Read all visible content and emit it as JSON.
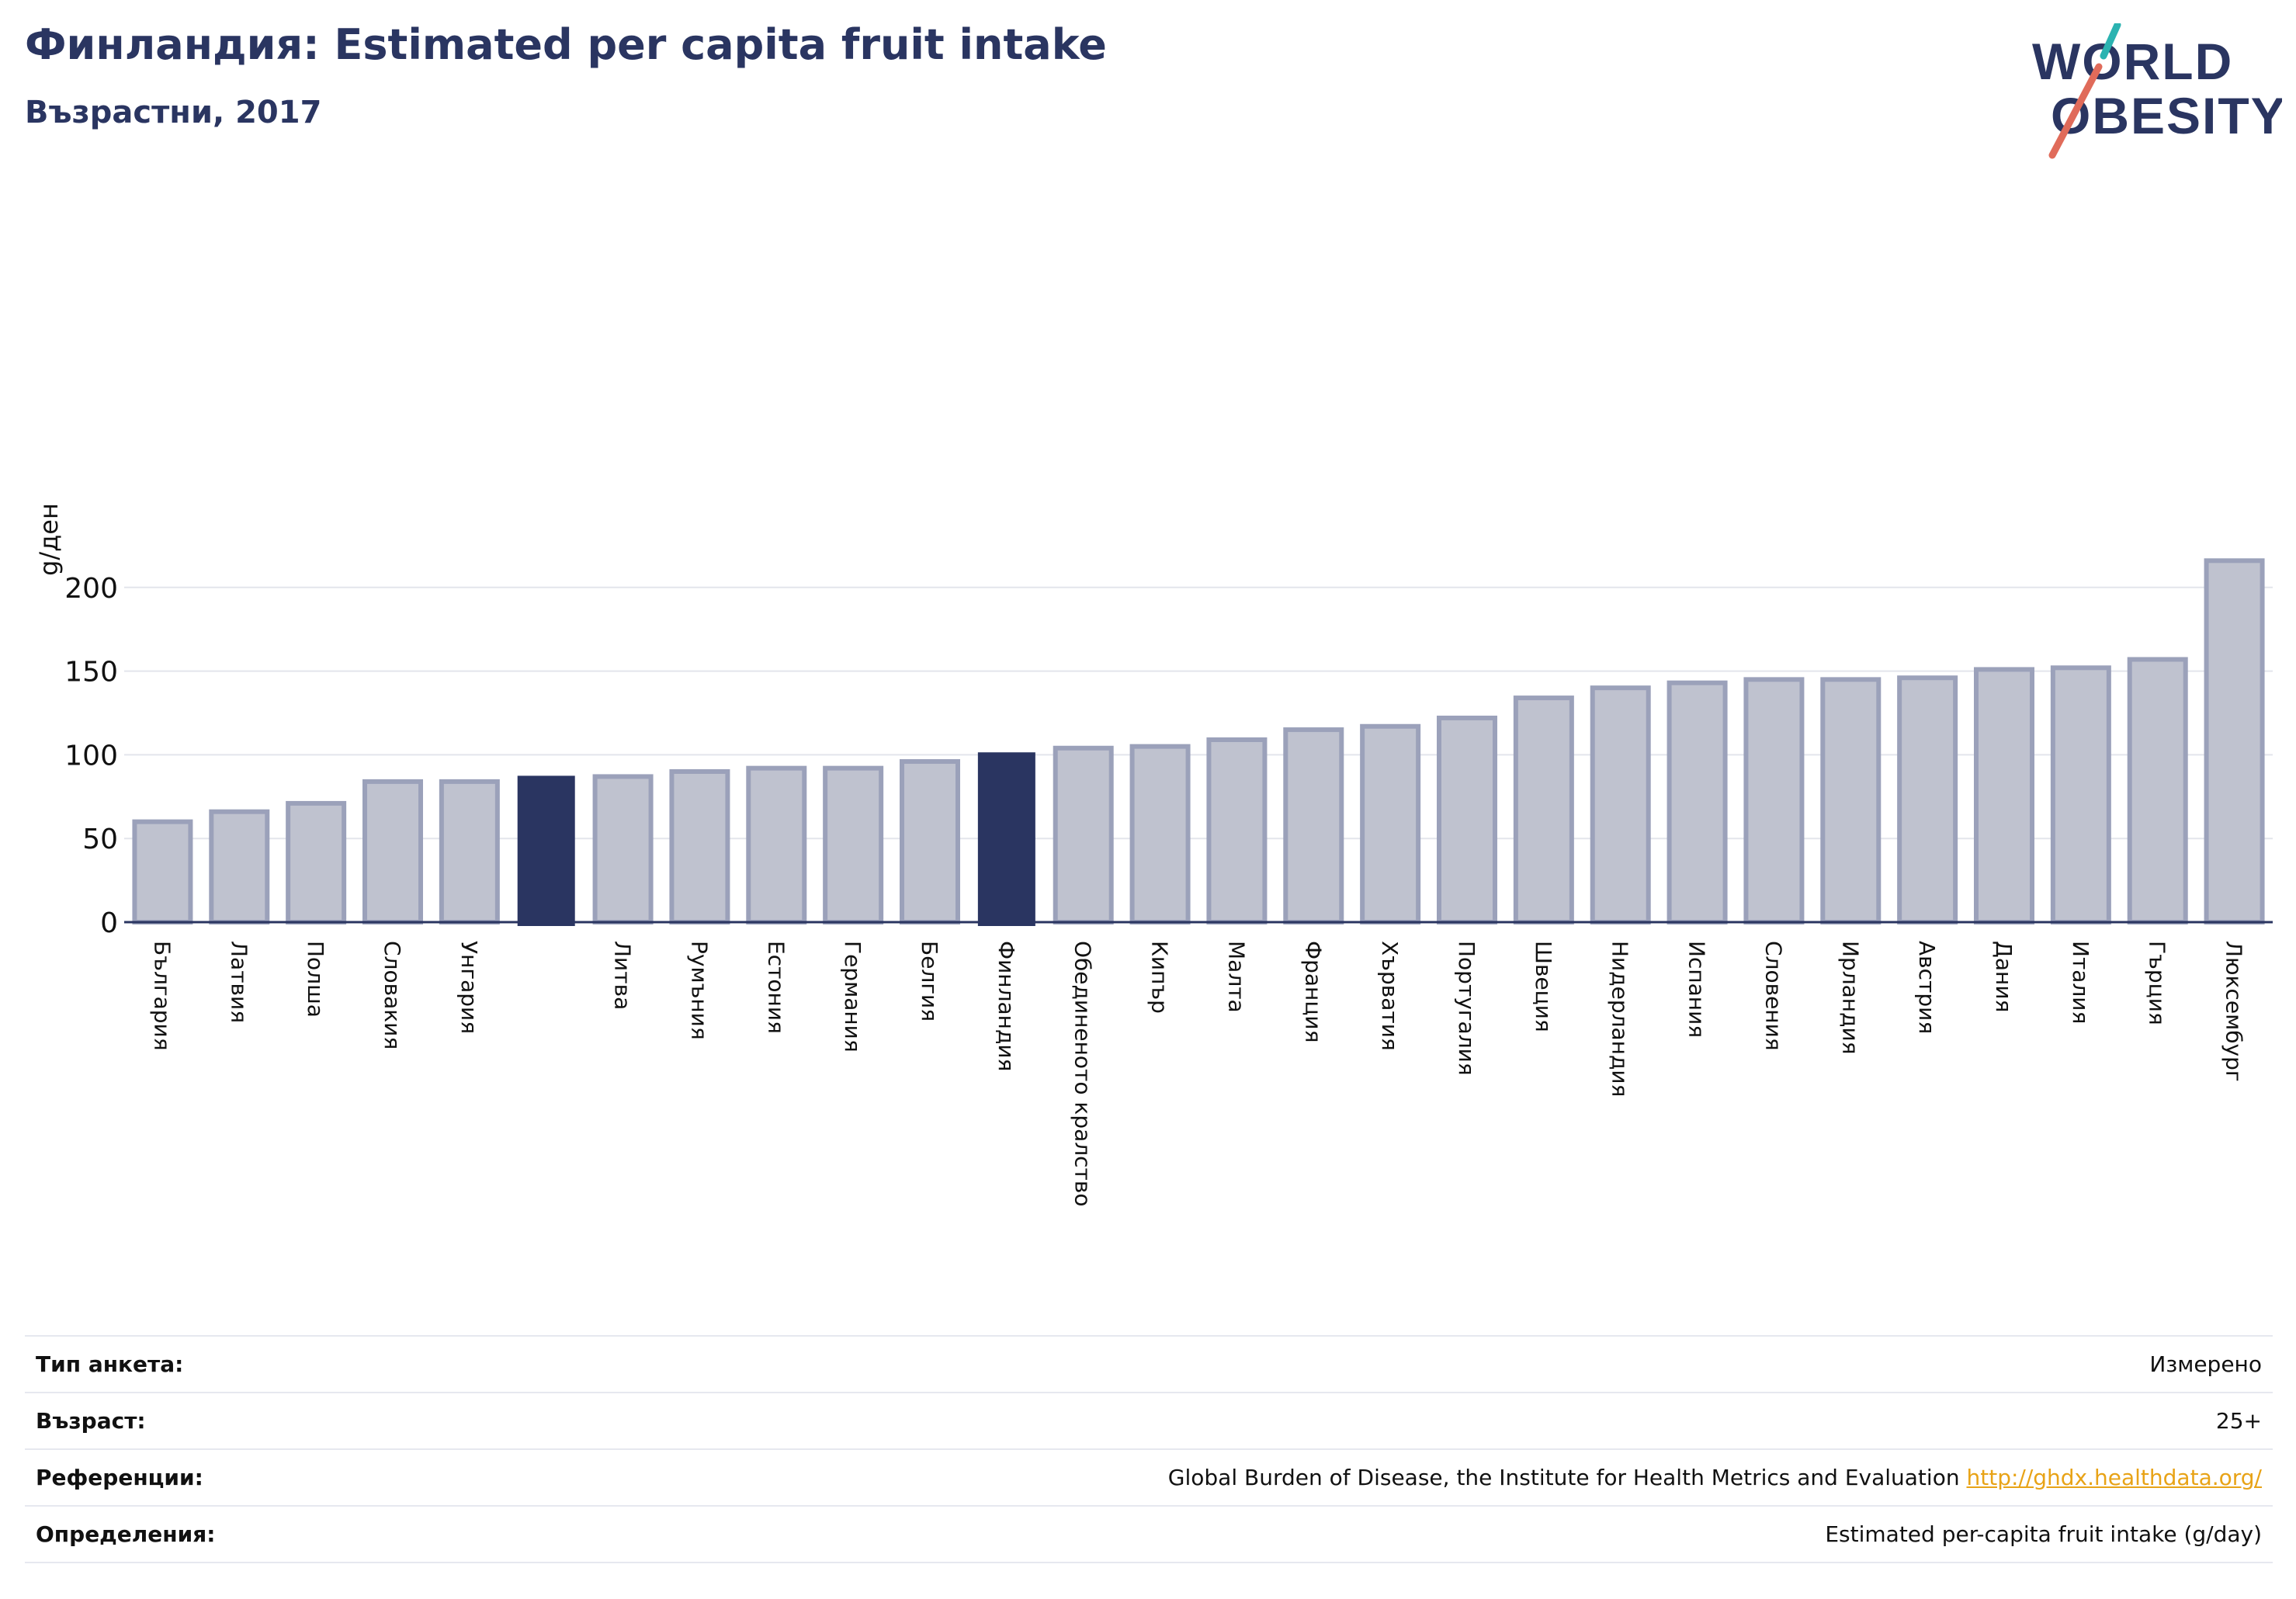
{
  "header": {
    "title": "Финландия: Estimated per capita fruit intake",
    "subtitle": "Възрастни, 2017"
  },
  "logo": {
    "line1": "WORLD",
    "line2": "OBESITY"
  },
  "colors": {
    "highlight": "#2a3561",
    "bar_fill": "#bfc2cf",
    "bar_stroke": "#9ba1ba",
    "accent_teal": "#2bb3b1",
    "accent_red": "#e06b5a",
    "link": "#e8a317"
  },
  "chart_data": {
    "type": "bar",
    "ylabel": "g/ден",
    "ylim": [
      0,
      230
    ],
    "yticks": [
      0,
      50,
      100,
      150,
      200
    ],
    "grid": true,
    "categories": [
      "България",
      "Латвия",
      "Полша",
      "Словакия",
      "Унгария",
      "",
      "Литва",
      "Румъния",
      "Естония",
      "Германия",
      "Белгия",
      "Финландия",
      "Обединеното кралство",
      "Кипър",
      "Малта",
      "Франция",
      "Хърватия",
      "Португалия",
      "Швеция",
      "Нидерландия",
      "Испания",
      "Словения",
      "Ирландия",
      "Австрия",
      "Дания",
      "Италия",
      "Гърция",
      "Люксембург"
    ],
    "values": [
      60,
      66,
      71,
      84,
      84,
      87,
      87,
      90,
      92,
      92,
      96,
      101,
      104,
      105,
      109,
      115,
      117,
      122,
      134,
      140,
      143,
      145,
      145,
      146,
      151,
      152,
      157,
      216
    ],
    "highlighted": [
      5,
      11
    ]
  },
  "info": [
    {
      "key": "Тип анкета:",
      "value": "Измерено"
    },
    {
      "key": "Възраст:",
      "value": "25+"
    },
    {
      "key": "Референции:",
      "value": "Global Burden of Disease, the Institute for Health Metrics and Evaluation",
      "link": "http://ghdx.healthdata.org/"
    },
    {
      "key": "Определения:",
      "value": "Estimated per-capita fruit intake (g/day)"
    }
  ]
}
